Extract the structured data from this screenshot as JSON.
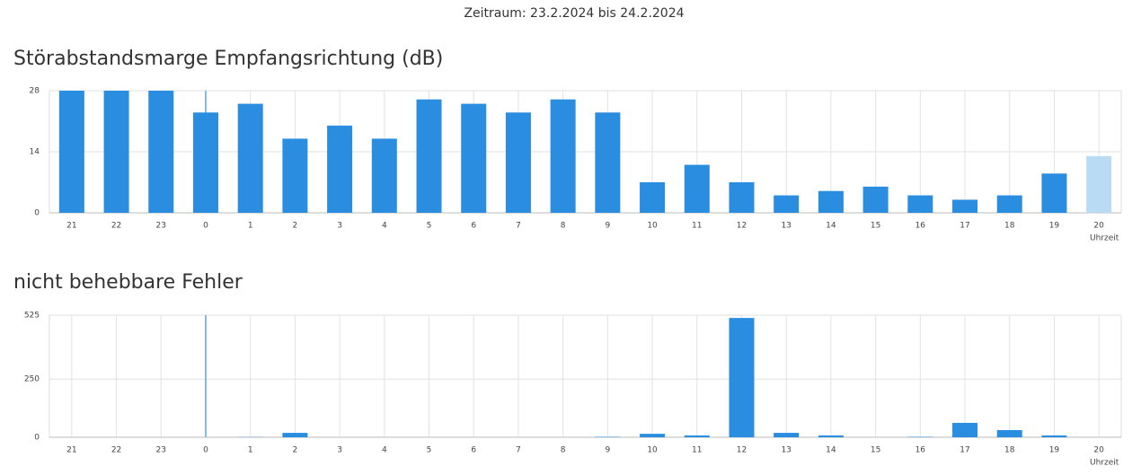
{
  "period": "Zeitraum: 23.2.2024 bis 24.2.2024",
  "chart_data": [
    {
      "type": "bar",
      "title": "Störabstandsmarge Empfangsrichtung (dB)",
      "x_label": "Uhrzeit",
      "categories": [
        "21",
        "22",
        "23",
        "0",
        "1",
        "2",
        "3",
        "4",
        "5",
        "6",
        "7",
        "8",
        "9",
        "10",
        "11",
        "12",
        "13",
        "14",
        "15",
        "16",
        "17",
        "18",
        "19",
        "20"
      ],
      "values": [
        28,
        28,
        28,
        23,
        25,
        17,
        20,
        17,
        26,
        25,
        23,
        26,
        23,
        7,
        11,
        7,
        4,
        5,
        6,
        4,
        3,
        4,
        9,
        13
      ],
      "colors": [
        "#2b8ddf",
        "#2b8ddf",
        "#2b8ddf",
        "#2b8ddf",
        "#2b8ddf",
        "#2b8ddf",
        "#2b8ddf",
        "#2b8ddf",
        "#2b8ddf",
        "#2b8ddf",
        "#2b8ddf",
        "#2b8ddf",
        "#2b8ddf",
        "#2b8ddf",
        "#2b8ddf",
        "#2b8ddf",
        "#2b8ddf",
        "#2b8ddf",
        "#2b8ddf",
        "#2b8ddf",
        "#2b8ddf",
        "#2b8ddf",
        "#2b8ddf",
        "#b9dbf3"
      ],
      "ylim": [
        0,
        28
      ],
      "yticks": [
        0,
        14,
        28
      ],
      "grid": true
    },
    {
      "type": "bar",
      "title": "nicht behebbare Fehler",
      "x_label": "Uhrzeit",
      "categories": [
        "21",
        "22",
        "23",
        "0",
        "1",
        "2",
        "3",
        "4",
        "5",
        "6",
        "7",
        "8",
        "9",
        "10",
        "11",
        "12",
        "13",
        "14",
        "15",
        "16",
        "17",
        "18",
        "19",
        "20"
      ],
      "values": [
        0,
        0,
        0,
        0,
        1,
        19,
        0,
        0,
        0,
        0,
        0,
        0,
        2,
        15,
        8,
        513,
        19,
        8,
        0,
        2,
        62,
        31,
        8,
        0
      ],
      "color": "#2b8ddf",
      "ylim": [
        0,
        525
      ],
      "yticks": [
        0,
        250,
        525
      ],
      "grid": true
    }
  ]
}
